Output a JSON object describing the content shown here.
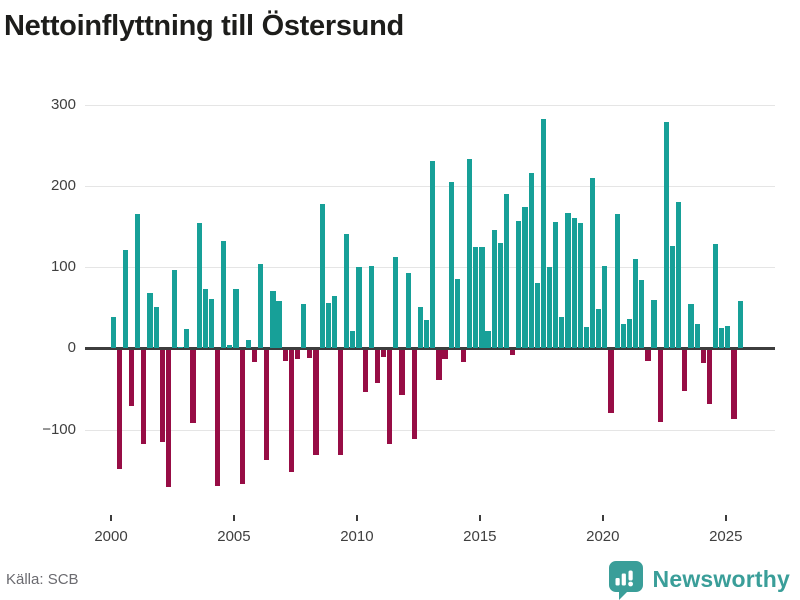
{
  "title": "Nettoinflyttning till Östersund",
  "source": "Källa: SCB",
  "brand": {
    "name": "Newsworthy",
    "color": "#3a9e99"
  },
  "colors": {
    "positive_bar": "#17a098",
    "negative_bar": "#970d45",
    "zero_line": "#3d3d3d",
    "gridline": "#e5e5e5",
    "title_text": "#1d1d1b",
    "axis_text": "#3f3f3f",
    "source_text": "#6b6b70"
  },
  "chart_data": {
    "type": "bar",
    "title": "Nettoinflyttning till Östersund",
    "frequency": "quarterly",
    "start_period": "2000 Q1",
    "end_period": "2025 Q3",
    "y_ticks": [
      300,
      200,
      100,
      0,
      -100
    ],
    "y_tick_labels": [
      "300",
      "200",
      "100",
      "0",
      "−100"
    ],
    "x_ticks": [
      2000,
      2005,
      2010,
      2015,
      2020,
      2025
    ],
    "x_tick_labels": [
      "2000",
      "2005",
      "2010",
      "2015",
      "2020",
      "2025"
    ],
    "ylim": [
      -205,
      312
    ],
    "grid": true,
    "legend": false,
    "values": [
      39,
      -146,
      121,
      -69,
      165,
      -116,
      68,
      51,
      -113,
      -169,
      96,
      2,
      24,
      -90,
      155,
      73,
      61,
      -167,
      132,
      4,
      73,
      -165,
      11,
      -15,
      104,
      -135,
      71,
      58,
      -13,
      -150,
      -11,
      55,
      -10,
      -129,
      178,
      56,
      65,
      -129,
      141,
      22,
      100,
      -52,
      101,
      -41,
      -9,
      -116,
      112,
      -56,
      93,
      -110,
      51,
      35,
      231,
      -37,
      -11,
      205,
      86,
      -15,
      233,
      125,
      125,
      21,
      146,
      130,
      190,
      -6,
      157,
      174,
      216,
      80,
      283,
      100,
      156,
      39,
      167,
      160,
      155,
      26,
      210,
      49,
      101,
      -78,
      166,
      30,
      36,
      110,
      84,
      -13,
      60,
      -89,
      279,
      126,
      180,
      -50,
      55,
      30,
      -16,
      -67,
      129,
      25,
      28,
      -85,
      58
    ]
  }
}
